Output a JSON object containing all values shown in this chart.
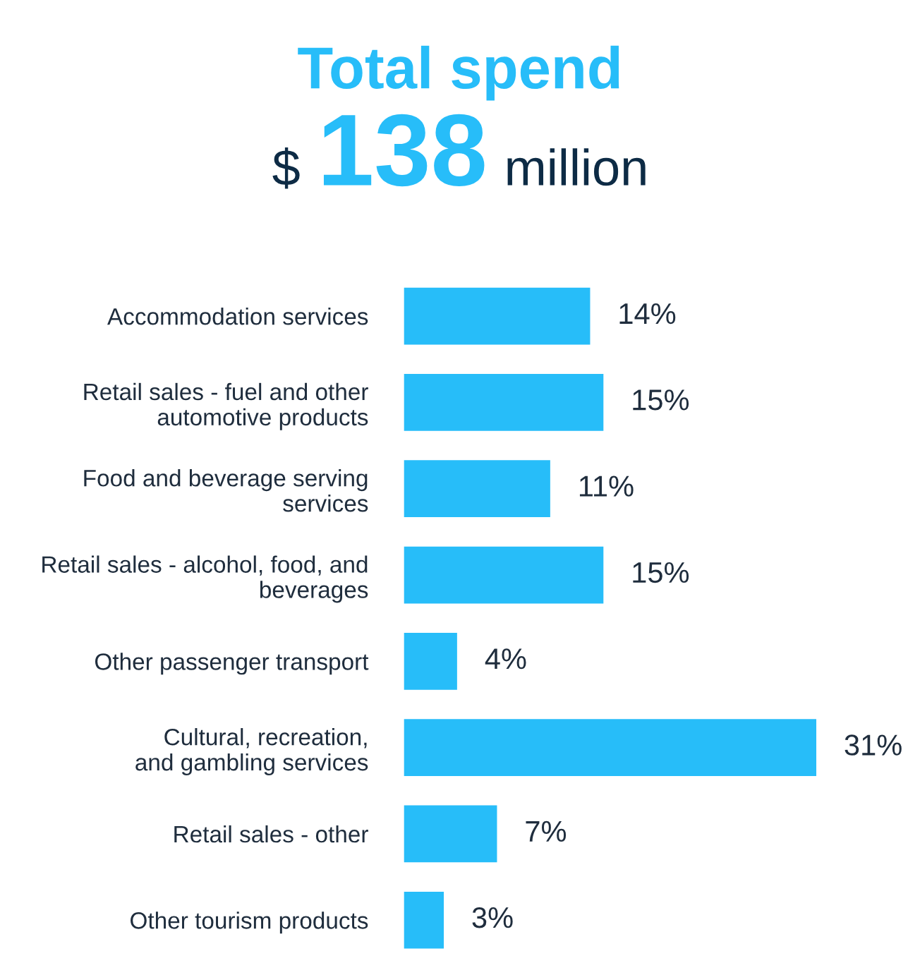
{
  "chart_data": {
    "type": "bar",
    "orientation": "horizontal",
    "title": "Total spend",
    "subtitle": "$ 138 million",
    "categories": [
      "Accommodation services",
      "Retail sales - fuel and other\nautomotive products",
      "Food and beverage serving\nservices",
      "Retail sales - alcohol, food, and\nbeverages",
      "Other passenger transport",
      "Cultural, recreation,\nand gambling services",
      "Retail sales - other",
      "Other tourism products"
    ],
    "values": [
      14,
      15,
      11,
      15,
      4,
      31,
      7,
      3
    ],
    "value_labels": [
      "14%",
      "15%",
      "11%",
      "15%",
      "4%",
      "31%",
      "7%",
      "3%"
    ],
    "color": "#27bdf9",
    "grid": false,
    "legend": false
  }
}
